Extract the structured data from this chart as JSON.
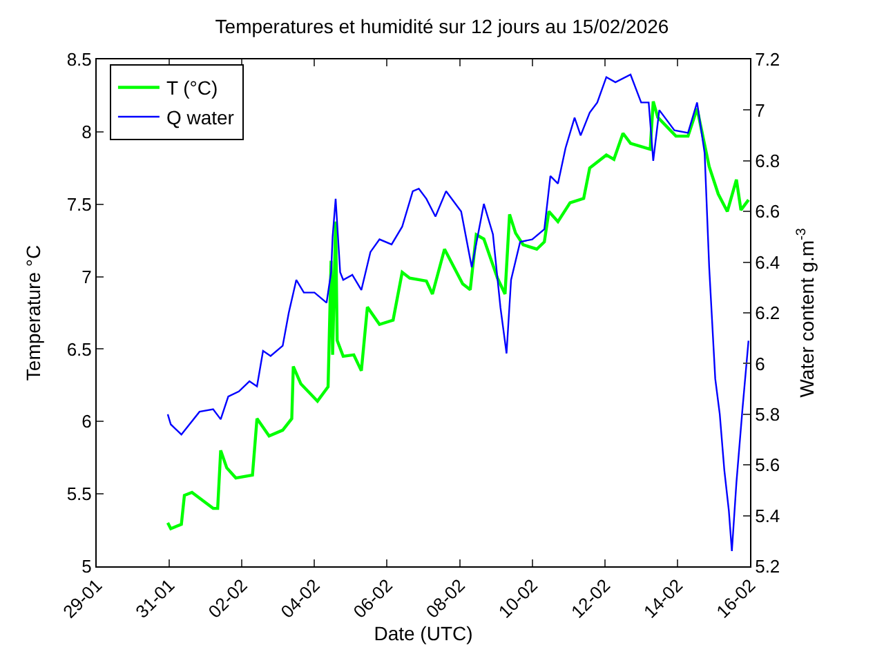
{
  "chart_data": {
    "type": "line",
    "title": "Temperatures et humidité sur 12 jours au 15/02/2026",
    "xlabel": "Date (UTC)",
    "ylabel": "Temperature °C",
    "y2label": "Water content g.m$^{-3}$",
    "xlim": [
      "2026-01-29",
      "2026-02-16"
    ],
    "xticks": [
      {
        "value": "2026-01-29",
        "label": "29-01"
      },
      {
        "value": "2026-01-31",
        "label": "31-01"
      },
      {
        "value": "2026-02-02",
        "label": "02-02"
      },
      {
        "value": "2026-02-04",
        "label": "04-02"
      },
      {
        "value": "2026-02-06",
        "label": "06-02"
      },
      {
        "value": "2026-02-08",
        "label": "08-02"
      },
      {
        "value": "2026-02-10",
        "label": "10-02"
      },
      {
        "value": "2026-02-12",
        "label": "12-02"
      },
      {
        "value": "2026-02-14",
        "label": "14-02"
      },
      {
        "value": "2026-02-16",
        "label": "16-02"
      }
    ],
    "ylim": [
      5,
      8.5
    ],
    "yticks": [
      5,
      5.5,
      6,
      6.5,
      7,
      7.5,
      8,
      8.5
    ],
    "y2lim": [
      5.2,
      7.2
    ],
    "y2ticks": [
      5.2,
      5.4,
      5.6,
      5.8,
      6,
      6.2,
      6.4,
      6.6,
      6.8,
      7,
      7.2
    ],
    "legend": "top left",
    "marker": "none",
    "line_style": "solid",
    "series": [
      {
        "name": "T (°C)",
        "color": "#00ff00",
        "x": [
          "2026-01-30T23:00",
          "2026-01-31T01:00",
          "2026-01-31T08:00",
          "2026-01-31T10:00",
          "2026-01-31T15:00",
          "2026-02-01T05:00",
          "2026-02-01T08:00",
          "2026-02-01T10:00",
          "2026-02-01T14:00",
          "2026-02-01T20:00",
          "2026-02-02T07:00",
          "2026-02-02T10:00",
          "2026-02-02T18:00",
          "2026-02-03T03:00",
          "2026-02-03T09:00",
          "2026-02-03T10:00",
          "2026-02-03T15:00",
          "2026-02-04T02:00",
          "2026-02-04T09:00",
          "2026-02-04T11:00",
          "2026-02-04T12:00",
          "2026-02-04T14:00",
          "2026-02-04T15:00",
          "2026-02-04T19:00",
          "2026-02-05T02:00",
          "2026-02-05T07:00",
          "2026-02-05T11:00",
          "2026-02-05T19:00",
          "2026-02-06T04:00",
          "2026-02-06T10:00",
          "2026-02-06T15:00",
          "2026-02-07T02:00",
          "2026-02-07T06:00",
          "2026-02-07T14:00",
          "2026-02-08T02:00",
          "2026-02-08T07:00",
          "2026-02-08T11:00",
          "2026-02-08T16:00",
          "2026-02-09T01:00",
          "2026-02-09T06:00",
          "2026-02-09T09:00",
          "2026-02-09T13:00",
          "2026-02-09T18:00",
          "2026-02-10T03:00",
          "2026-02-10T08:00",
          "2026-02-10T11:00",
          "2026-02-10T17:00",
          "2026-02-11T01:00",
          "2026-02-11T10:00",
          "2026-02-11T14:00",
          "2026-02-12T01:00",
          "2026-02-12T06:00",
          "2026-02-12T12:00",
          "2026-02-12T17:00",
          "2026-02-13T06:00",
          "2026-02-13T08:00",
          "2026-02-13T11:00",
          "2026-02-13T23:00",
          "2026-02-14T07:00",
          "2026-02-14T13:00",
          "2026-02-14T21:00",
          "2026-02-15T03:00",
          "2026-02-15T09:00",
          "2026-02-15T15:00",
          "2026-02-15T18:00",
          "2026-02-15T23:00"
        ],
        "values": [
          5.3,
          5.26,
          5.29,
          5.49,
          5.51,
          5.4,
          5.4,
          5.8,
          5.68,
          5.61,
          5.63,
          6.02,
          5.9,
          5.94,
          6.02,
          6.38,
          6.26,
          6.14,
          6.24,
          7.11,
          6.46,
          7.38,
          6.56,
          6.45,
          6.46,
          6.35,
          6.79,
          6.67,
          6.7,
          7.03,
          6.99,
          6.97,
          6.88,
          7.19,
          6.95,
          6.91,
          7.29,
          7.26,
          6.99,
          6.88,
          7.43,
          7.3,
          7.22,
          7.19,
          7.24,
          7.45,
          7.38,
          7.51,
          7.54,
          7.75,
          7.84,
          7.81,
          7.99,
          7.92,
          7.88,
          8.21,
          8.1,
          7.97,
          7.97,
          8.16,
          7.76,
          7.57,
          7.45,
          7.67,
          7.46,
          7.53
        ]
      },
      {
        "name": "Q water",
        "color": "#0000ff",
        "axis": "y2",
        "x": [
          "2026-01-30T23:00",
          "2026-01-31T01:00",
          "2026-01-31T08:00",
          "2026-01-31T20:00",
          "2026-02-01T05:00",
          "2026-02-01T10:00",
          "2026-02-01T15:00",
          "2026-02-01T22:00",
          "2026-02-02T05:00",
          "2026-02-02T10:00",
          "2026-02-02T14:00",
          "2026-02-02T19:00",
          "2026-02-03T03:00",
          "2026-02-03T07:00",
          "2026-02-03T12:00",
          "2026-02-03T17:00",
          "2026-02-04T00:00",
          "2026-02-04T08:00",
          "2026-02-04T11:00",
          "2026-02-04T12:00",
          "2026-02-04T14:00",
          "2026-02-04T17:00",
          "2026-02-04T19:00",
          "2026-02-05T01:00",
          "2026-02-05T07:00",
          "2026-02-05T13:00",
          "2026-02-05T19:00",
          "2026-02-06T03:00",
          "2026-02-06T10:00",
          "2026-02-06T17:00",
          "2026-02-06T21:00",
          "2026-02-07T02:00",
          "2026-02-07T08:00",
          "2026-02-07T15:00",
          "2026-02-08T01:00",
          "2026-02-08T08:00",
          "2026-02-08T16:00",
          "2026-02-08T22:00",
          "2026-02-09T03:00",
          "2026-02-09T07:00",
          "2026-02-09T10:00",
          "2026-02-09T16:00",
          "2026-02-10T00:00",
          "2026-02-10T08:00",
          "2026-02-10T12:00",
          "2026-02-10T17:00",
          "2026-02-10T22:00",
          "2026-02-11T04:00",
          "2026-02-11T08:00",
          "2026-02-11T14:00",
          "2026-02-11T19:00",
          "2026-02-12T01:00",
          "2026-02-12T07:00",
          "2026-02-12T17:00",
          "2026-02-13T00:00",
          "2026-02-13T05:00",
          "2026-02-13T08:00",
          "2026-02-13T12:00",
          "2026-02-13T22:00",
          "2026-02-14T07:00",
          "2026-02-14T13:00",
          "2026-02-14T18:00",
          "2026-02-14T21:00",
          "2026-02-15T01:00",
          "2026-02-15T04:00",
          "2026-02-15T07:00",
          "2026-02-15T10:00",
          "2026-02-15T12:00",
          "2026-02-15T15:00",
          "2026-02-15T19:00",
          "2026-02-15T23:00"
        ],
        "values": [
          5.8,
          5.76,
          5.72,
          5.81,
          5.82,
          5.78,
          5.87,
          5.89,
          5.93,
          5.91,
          6.05,
          6.03,
          6.07,
          6.2,
          6.33,
          6.28,
          6.28,
          6.24,
          6.36,
          6.5,
          6.65,
          6.36,
          6.33,
          6.35,
          6.29,
          6.44,
          6.49,
          6.47,
          6.54,
          6.68,
          6.69,
          6.65,
          6.58,
          6.68,
          6.6,
          6.38,
          6.63,
          6.51,
          6.22,
          6.04,
          6.33,
          6.48,
          6.49,
          6.53,
          6.74,
          6.71,
          6.85,
          6.97,
          6.9,
          6.99,
          7.03,
          7.13,
          7.11,
          7.14,
          7.03,
          7.03,
          6.8,
          7.0,
          6.92,
          6.91,
          7.03,
          6.83,
          6.38,
          5.94,
          5.8,
          5.58,
          5.42,
          5.26,
          5.53,
          5.82,
          6.09
        ]
      }
    ]
  }
}
